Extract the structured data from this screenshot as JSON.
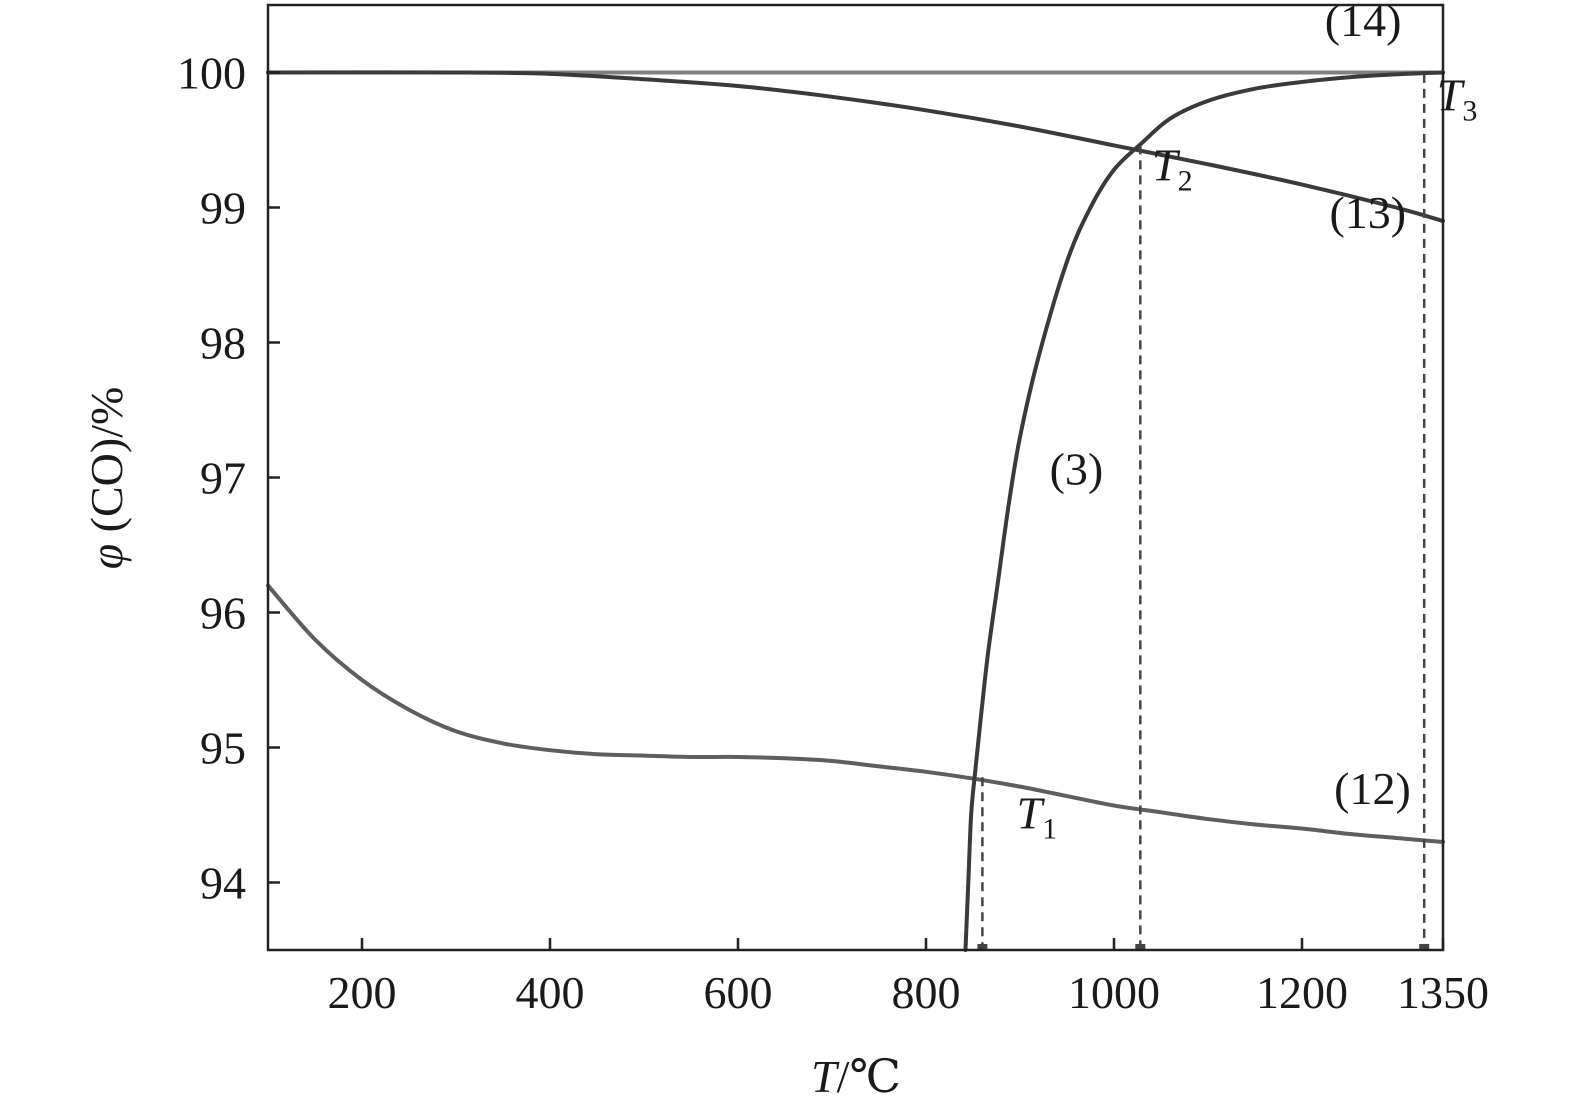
{
  "chart_data": {
    "type": "line",
    "title": "",
    "xlabel": {
      "italic": "T",
      "rest": "/℃"
    },
    "ylabel": {
      "italic": "φ",
      "rest": " (CO)/%"
    },
    "xlim": [
      100,
      1350
    ],
    "ylim": [
      93.5,
      100.5
    ],
    "x_ticks": [
      200,
      400,
      600,
      800,
      1000,
      1200,
      1350
    ],
    "x_tick_labels": [
      "200",
      "400",
      "600",
      "800",
      "1000",
      "1200",
      "1350"
    ],
    "y_ticks": [
      94,
      95,
      96,
      97,
      98,
      99,
      100
    ],
    "y_tick_labels": [
      "94",
      "95",
      "96",
      "97",
      "98",
      "99",
      "100"
    ],
    "grid": false,
    "legend": "none",
    "colors": {
      "axis": "#222222",
      "curve_dark": "#3a3a3a",
      "curve_mid": "#5e5e5e",
      "curve_light": "#808080",
      "dashed": "#444444"
    },
    "series": [
      {
        "name": "(14)",
        "color": "#808080",
        "x": [
          100,
          1350
        ],
        "y": [
          100.0,
          100.0
        ]
      },
      {
        "name": "(13)",
        "color": "#3a3a3a",
        "x": [
          100,
          300,
          400,
          500,
          600,
          700,
          800,
          900,
          1000,
          1100,
          1200,
          1300,
          1350
        ],
        "y": [
          100.0,
          100.0,
          99.99,
          99.95,
          99.9,
          99.82,
          99.72,
          99.6,
          99.46,
          99.32,
          99.17,
          99.0,
          98.9
        ]
      },
      {
        "name": "(12)",
        "color": "#5e5e5e",
        "x": [
          100,
          150,
          200,
          250,
          300,
          350,
          400,
          450,
          500,
          550,
          600,
          650,
          700,
          750,
          800,
          850,
          900,
          950,
          1000,
          1050,
          1100,
          1150,
          1200,
          1250,
          1300,
          1350
        ],
        "y": [
          96.2,
          95.8,
          95.5,
          95.28,
          95.12,
          95.03,
          94.98,
          94.95,
          94.94,
          94.93,
          94.93,
          94.92,
          94.9,
          94.86,
          94.82,
          94.77,
          94.71,
          94.64,
          94.57,
          94.52,
          94.47,
          94.43,
          94.4,
          94.36,
          94.33,
          94.3
        ]
      },
      {
        "name": "(3)",
        "color": "#3a3a3a",
        "x": [
          842,
          845,
          848,
          852,
          858,
          866,
          876,
          888,
          900,
          920,
          950,
          975,
          1000,
          1030,
          1060,
          1100,
          1150,
          1200,
          1260,
          1310,
          1350
        ],
        "y": [
          93.5,
          94.0,
          94.5,
          94.8,
          95.2,
          95.7,
          96.2,
          96.8,
          97.3,
          97.9,
          98.6,
          99.0,
          99.28,
          99.48,
          99.66,
          99.79,
          99.88,
          99.93,
          99.97,
          99.99,
          100.0
        ]
      }
    ],
    "reference_lines": [
      {
        "label": "T1",
        "x": 860,
        "y": 94.78
      },
      {
        "label": "T2",
        "x": 1028,
        "y": 99.46
      },
      {
        "label": "T3",
        "x": 1330,
        "y": 99.99
      }
    ],
    "annotations": [
      {
        "text": "(14)",
        "x": 1265,
        "y": 100.27
      },
      {
        "text": "(13)",
        "x": 1270,
        "y": 98.85
      },
      {
        "text": "(12)",
        "x": 1275,
        "y": 94.58
      },
      {
        "text": "(3)",
        "x": 960,
        "y": 96.95
      },
      {
        "text": "T",
        "sub": "1",
        "x": 918,
        "y": 94.4
      },
      {
        "text": "T",
        "sub": "2",
        "x": 1062,
        "y": 99.2
      },
      {
        "text": "T",
        "sub": "3",
        "x": 1365,
        "y": 99.72
      }
    ]
  }
}
